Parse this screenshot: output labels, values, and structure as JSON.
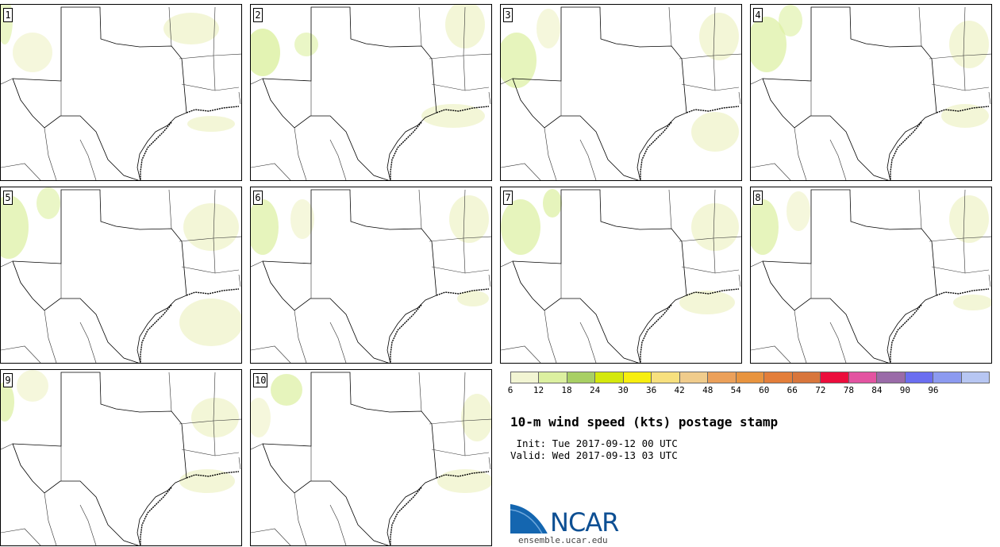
{
  "panels": [
    {
      "id": "1",
      "label": "1"
    },
    {
      "id": "2",
      "label": "2"
    },
    {
      "id": "3",
      "label": "3"
    },
    {
      "id": "4",
      "label": "4"
    },
    {
      "id": "5",
      "label": "5"
    },
    {
      "id": "6",
      "label": "6"
    },
    {
      "id": "7",
      "label": "7"
    },
    {
      "id": "8",
      "label": "8"
    },
    {
      "id": "9",
      "label": "9"
    },
    {
      "id": "10",
      "label": "10"
    }
  ],
  "colorbar": {
    "colors": [
      "#f2f5d3",
      "#dcf0a0",
      "#a8cf64",
      "#d4e80c",
      "#f7ee0f",
      "#f7e07e",
      "#f0cc8c",
      "#eba05a",
      "#e8943f",
      "#e37e3a",
      "#d8763c",
      "#ec0d3c",
      "#e354a1",
      "#9a6ba8",
      "#6b6ef0",
      "#8c9af0",
      "#b7c6f2"
    ],
    "ticks": [
      "6",
      "12",
      "18",
      "24",
      "30",
      "36",
      "42",
      "48",
      "54",
      "60",
      "66",
      "72",
      "78",
      "84",
      "90",
      "96"
    ]
  },
  "title": "10-m wind speed (kts) postage stamp",
  "init_line": " Init: Tue 2017-09-12 00 UTC",
  "valid_line": "Valid: Wed 2017-09-13 03 UTC",
  "logo": {
    "text": "NCAR",
    "url": "ensemble.ucar.edu"
  }
}
